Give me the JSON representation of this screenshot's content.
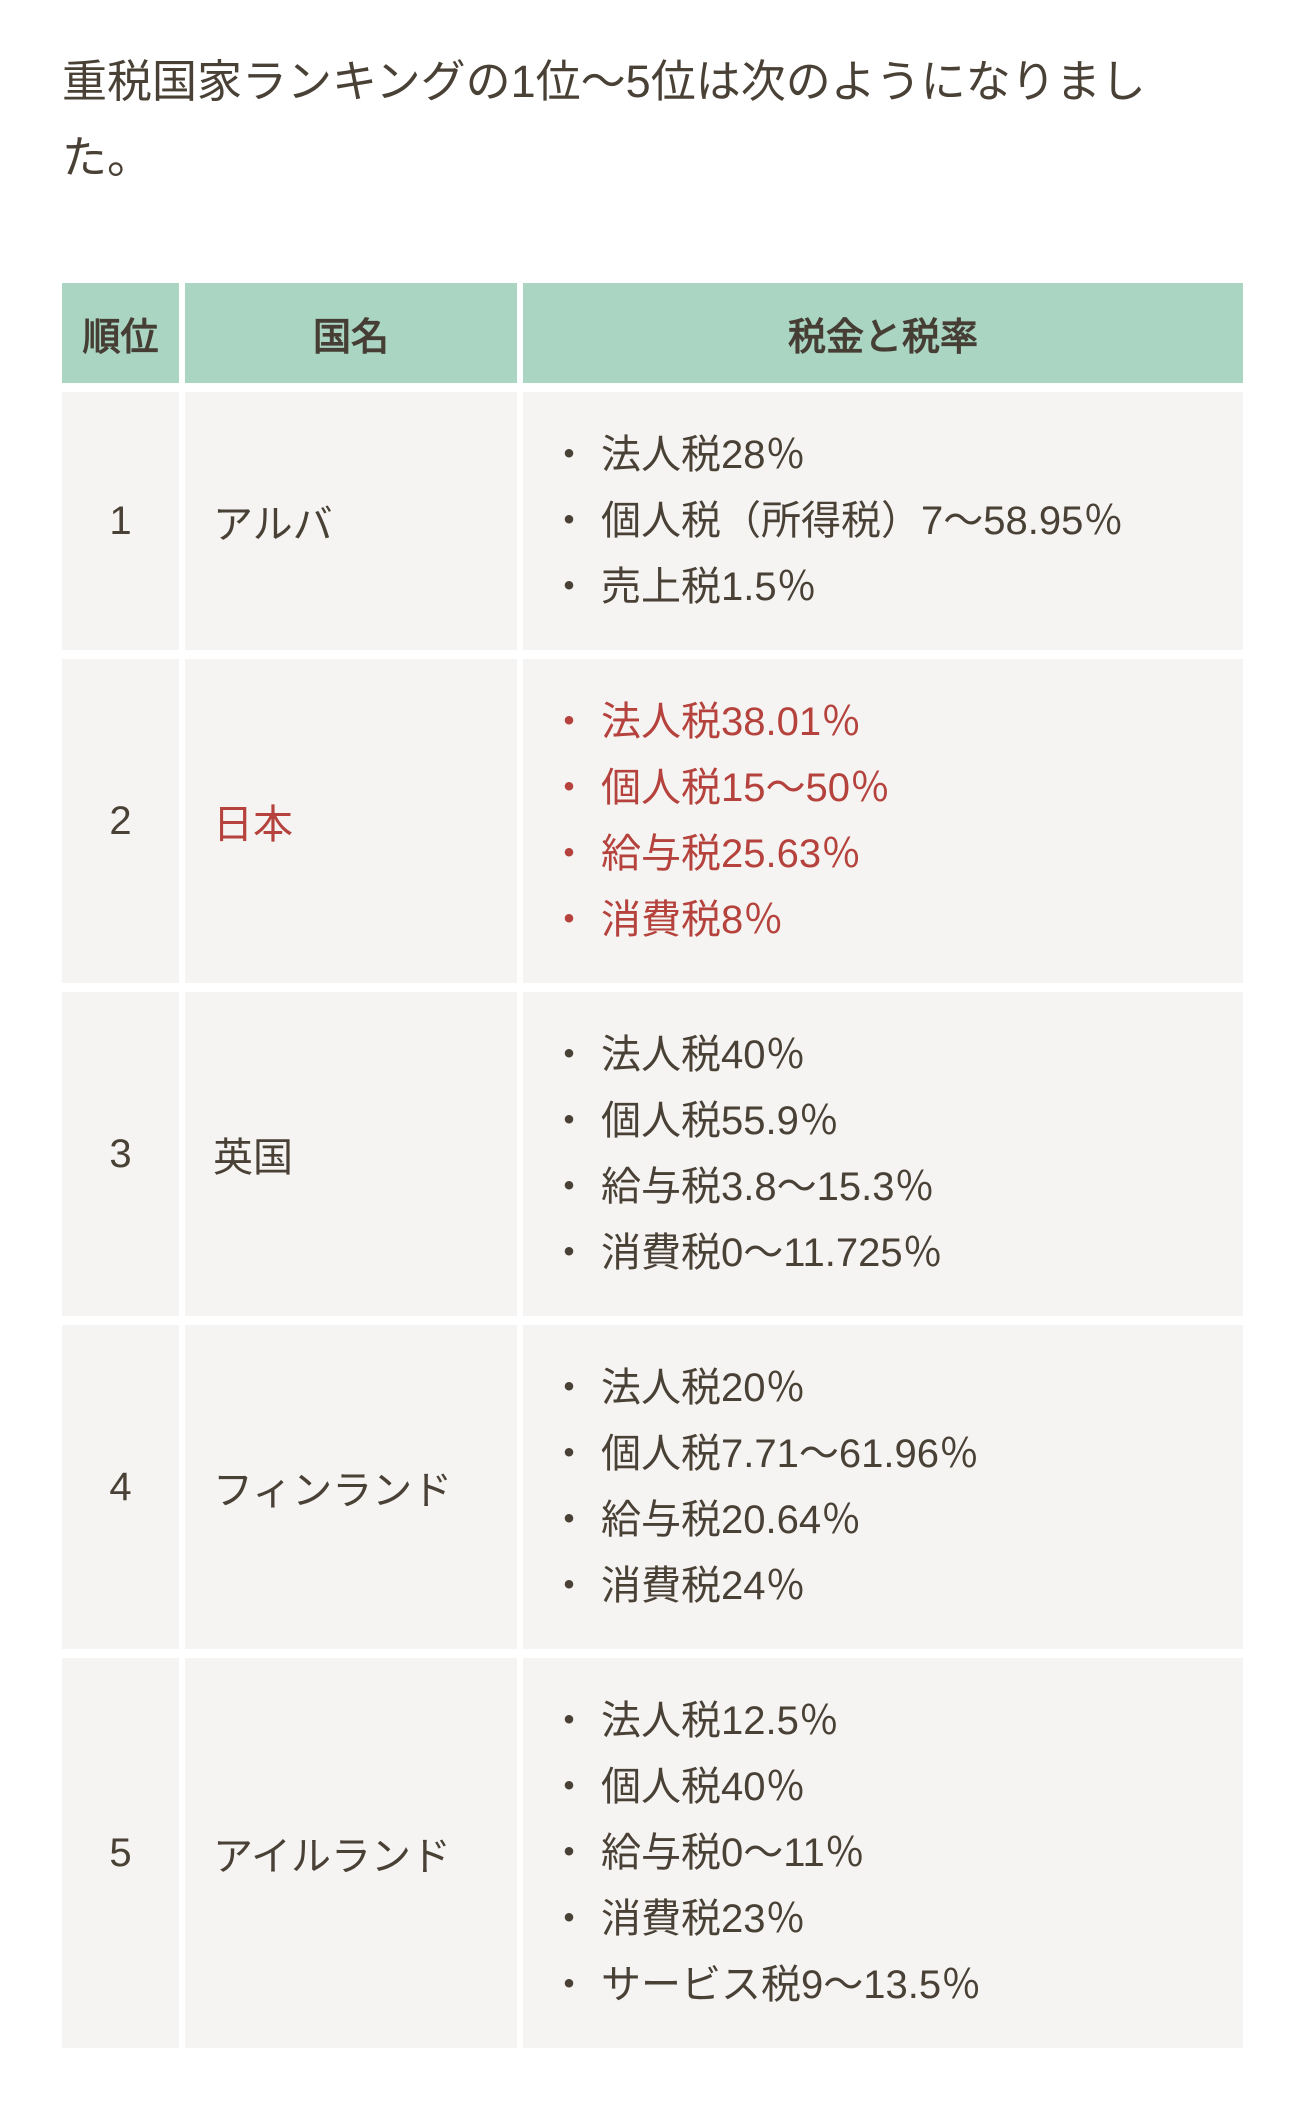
{
  "title": "重税国家ランキングの1位〜5位は次のようになりました。",
  "table": {
    "bullet": "・",
    "columns": [
      {
        "label": "順位"
      },
      {
        "label": "国名"
      },
      {
        "label": "税金と税率"
      }
    ],
    "rows": [
      {
        "rank": "1",
        "country": "アルバ",
        "highlight": false,
        "taxes": [
          "法人税28％",
          "個人税（所得税）7〜58.95％",
          "売上税1.5％"
        ]
      },
      {
        "rank": "2",
        "country": "日本",
        "highlight": true,
        "taxes": [
          "法人税38.01％",
          "個人税15〜50％",
          "給与税25.63％",
          "消費税8％"
        ]
      },
      {
        "rank": "3",
        "country": "英国",
        "highlight": false,
        "taxes": [
          "法人税40％",
          "個人税55.9％",
          "給与税3.8〜15.3％",
          "消費税0〜11.725％"
        ]
      },
      {
        "rank": "4",
        "country": "フィンランド",
        "highlight": false,
        "taxes": [
          "法人税20％",
          "個人税7.71〜61.96％",
          "給与税20.64％",
          "消費税24％"
        ]
      },
      {
        "rank": "5",
        "country": "アイルランド",
        "highlight": false,
        "taxes": [
          "法人税12.5％",
          "個人税40％",
          "給与税0〜11％",
          "消費税23％",
          "サービス税9〜13.5％"
        ]
      }
    ]
  },
  "colors": {
    "text": "#4a4136",
    "header-bg": "#aad5c3",
    "header-text": "#463e34",
    "cell-bg": "#f5f4f2",
    "highlight": "#b5423c",
    "page-bg": "#ffffff"
  }
}
